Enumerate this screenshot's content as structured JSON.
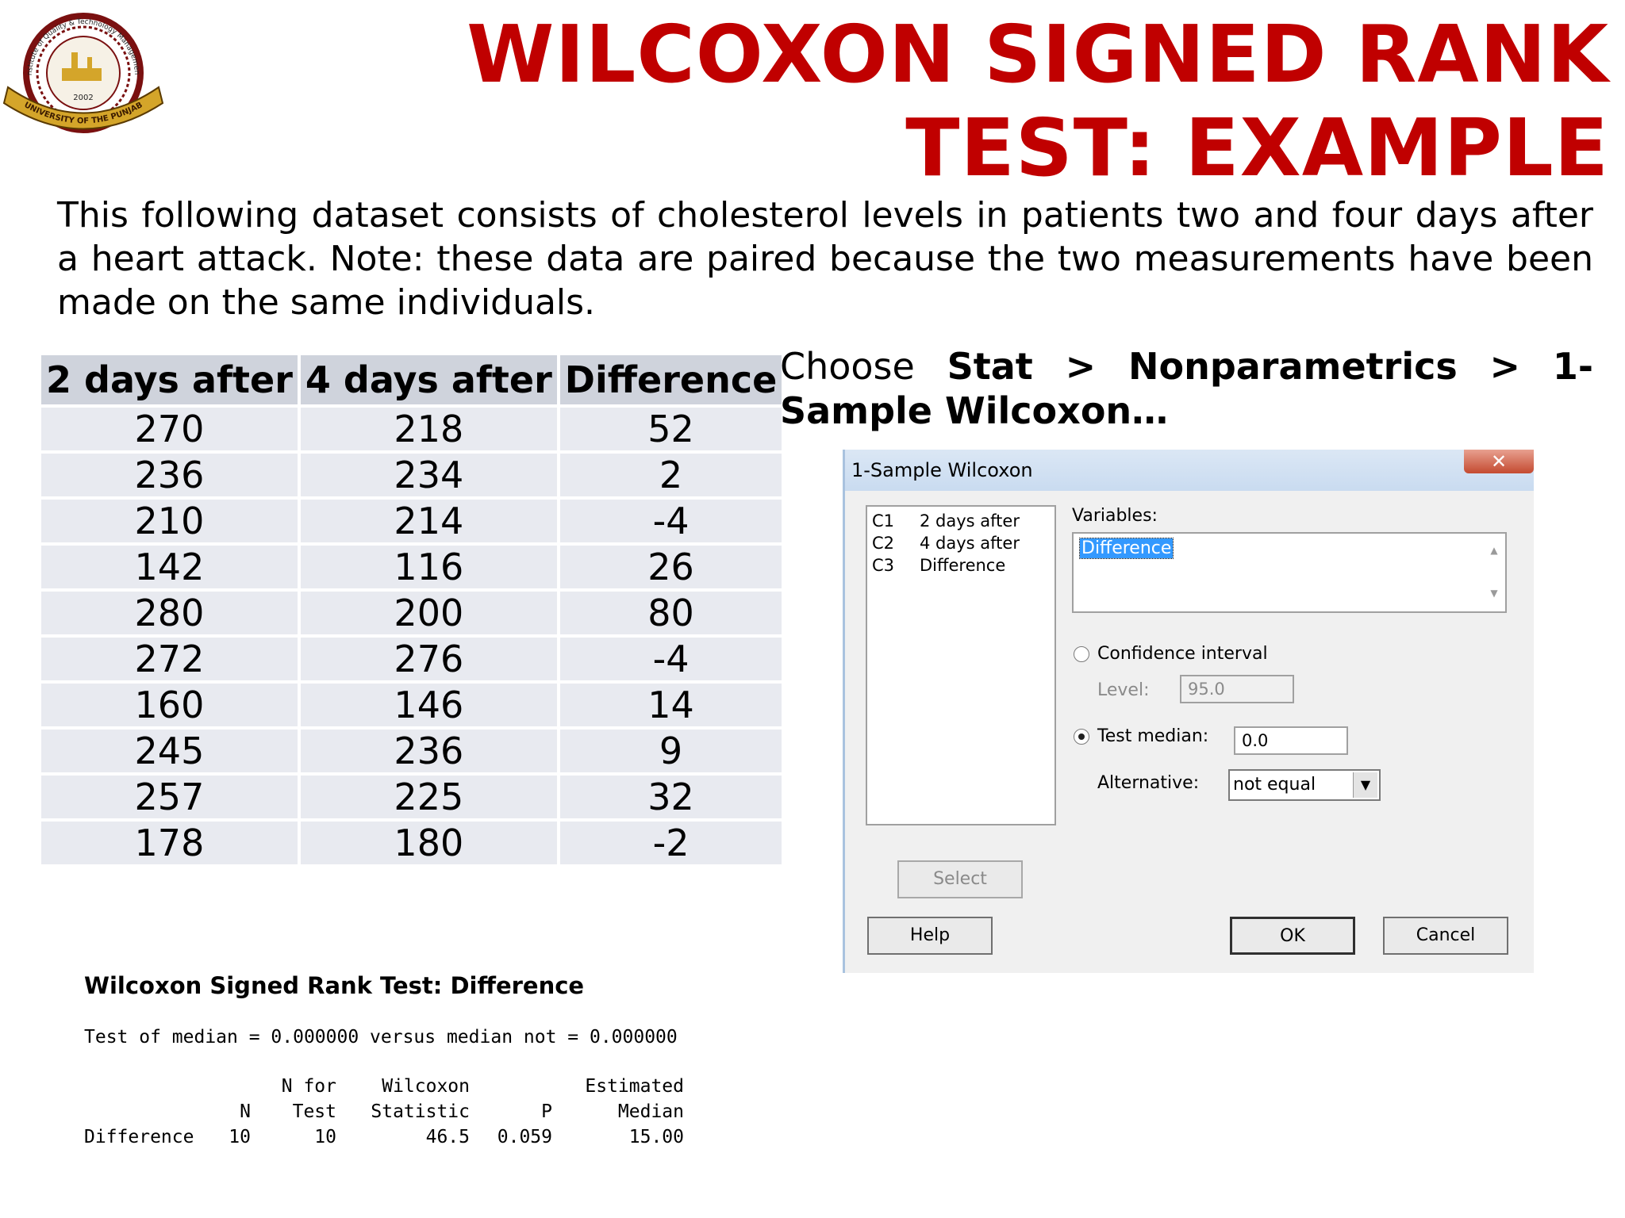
{
  "logo": {
    "top_text": "Institute of Quality & Technology Management",
    "year": "2002",
    "ribbon_text": "UNIVERSITY OF THE PUNJAB",
    "colors": {
      "ring": "#7a1010",
      "gold": "#d4a52a"
    }
  },
  "title": {
    "line1": "WILCOXON SIGNED RANK",
    "line2": "TEST: EXAMPLE",
    "color": "#c00000"
  },
  "intro": "This following dataset consists of cholesterol levels in patients two and four days after a heart attack. Note: these data are paired because the two measurements have been made on the same individuals.",
  "data_table": {
    "headers": [
      "2 days after",
      "4 days after",
      "Difference"
    ],
    "rows": [
      [
        "270",
        "218",
        "52"
      ],
      [
        "236",
        "234",
        "2"
      ],
      [
        "210",
        "214",
        "-4"
      ],
      [
        "142",
        "116",
        "26"
      ],
      [
        "280",
        "200",
        "80"
      ],
      [
        "272",
        "276",
        "-4"
      ],
      [
        "160",
        "146",
        "14"
      ],
      [
        "245",
        "236",
        "9"
      ],
      [
        "257",
        "225",
        "32"
      ],
      [
        "178",
        "180",
        "-2"
      ]
    ]
  },
  "menu_path": {
    "prefix": "Choose",
    "step1": "Stat",
    "sep": ">",
    "step2": "Nonparametrics",
    "step3": "1-Sample Wilcoxon…"
  },
  "dialog": {
    "title": "1-Sample Wilcoxon",
    "close_icon": "x-icon",
    "columns": [
      {
        "id": "C1",
        "name": "2 days after"
      },
      {
        "id": "C2",
        "name": "4 days after"
      },
      {
        "id": "C3",
        "name": "Difference"
      }
    ],
    "variables_label": "Variables:",
    "variables_value": "Difference",
    "confidence_label": "Confidence interval",
    "level_label": "Level:",
    "level_value": "95.0",
    "test_median_label": "Test median:",
    "test_median_value": "0.0",
    "alternative_label": "Alternative:",
    "alternative_value": "not equal",
    "select_label": "Select",
    "help_label": "Help",
    "ok_label": "OK",
    "cancel_label": "Cancel"
  },
  "output": {
    "title": "Wilcoxon Signed Rank Test: Difference",
    "test_line": "Test of median = 0.000000 versus median not = 0.000000",
    "header1": [
      "",
      "",
      "N for",
      "Wilcoxon",
      "",
      "Estimated"
    ],
    "header2": [
      "",
      "N",
      "Test",
      "Statistic",
      "P",
      "Median"
    ],
    "row": [
      "Difference",
      "10",
      "10",
      "46.5",
      "0.059",
      "15.00"
    ]
  }
}
